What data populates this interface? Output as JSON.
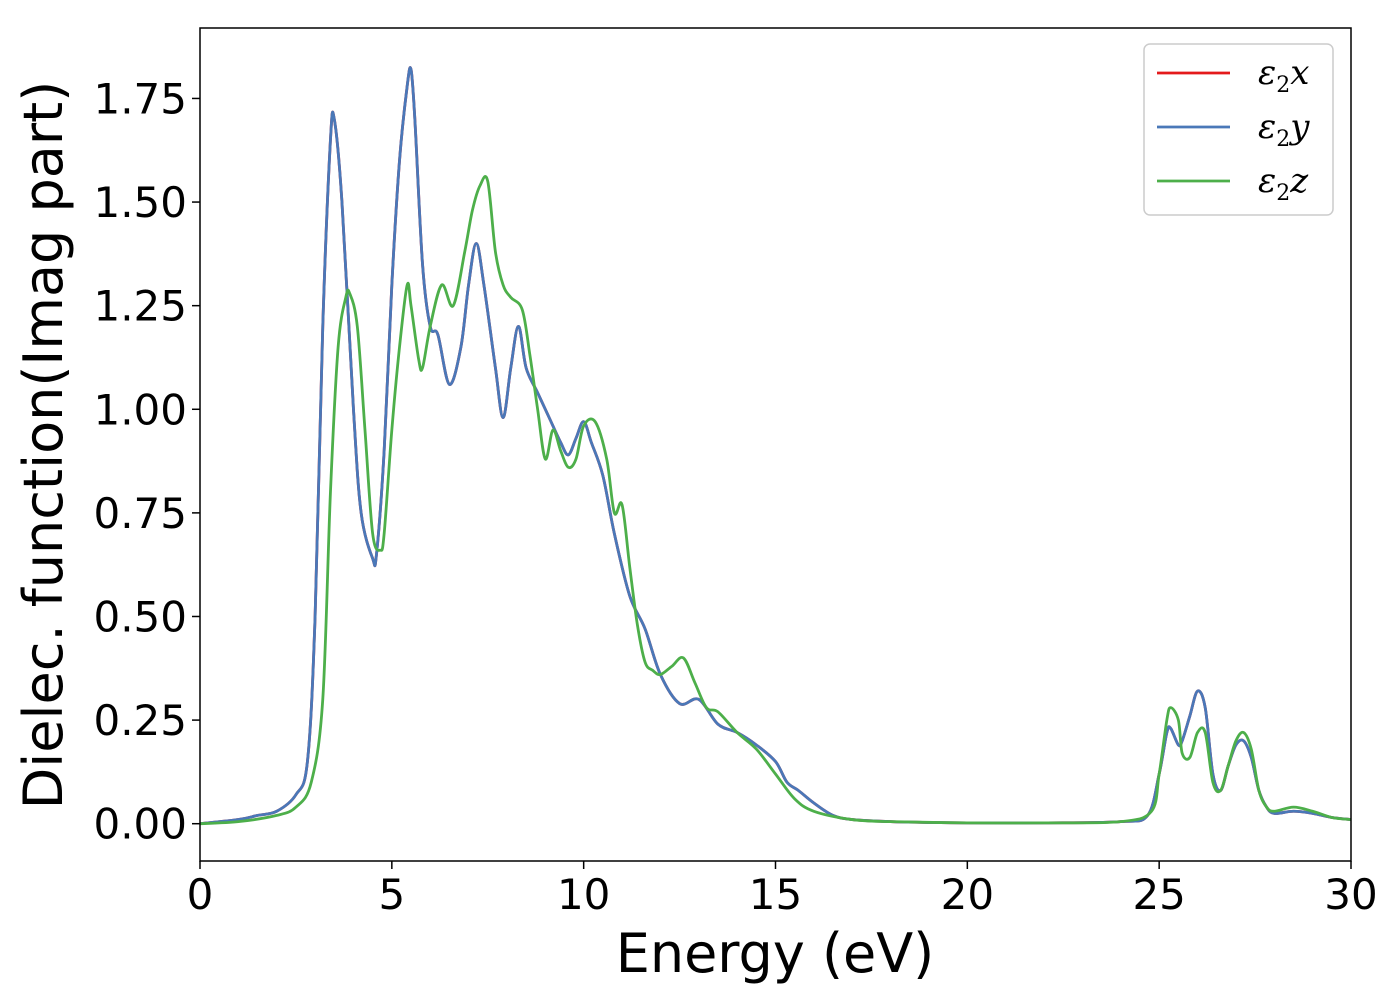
{
  "chart_data": {
    "type": "line",
    "title": "",
    "xlabel": "Energy (eV)",
    "ylabel": "Dielec. function(Imag part)",
    "xlim": [
      0,
      30
    ],
    "ylim": [
      -0.09,
      1.92
    ],
    "xticks": [
      0,
      5,
      10,
      15,
      20,
      25,
      30
    ],
    "xtick_labels": [
      "0",
      "5",
      "10",
      "15",
      "20",
      "25",
      "30"
    ],
    "yticks": [
      0.0,
      0.25,
      0.5,
      0.75,
      1.0,
      1.25,
      1.5,
      1.75
    ],
    "ytick_labels": [
      "0.00",
      "0.25",
      "0.50",
      "0.75",
      "1.00",
      "1.25",
      "1.50",
      "1.75"
    ],
    "grid": false,
    "legend_position": "top-right",
    "series": [
      {
        "name": "ε2x",
        "label_base": "ε",
        "label_sub": "2",
        "label_var": "x",
        "color": "#e41a1c",
        "x": [
          0,
          1,
          1.5,
          2,
          2.5,
          2.8,
          3,
          3.2,
          3.4,
          3.5,
          3.7,
          4,
          4.2,
          4.5,
          4.6,
          4.8,
          5,
          5.2,
          5.4,
          5.5,
          5.6,
          5.8,
          6,
          6.2,
          6.5,
          6.8,
          7,
          7.2,
          7.4,
          7.7,
          7.9,
          8.1,
          8.3,
          8.5,
          8.8,
          9.1,
          9.4,
          9.6,
          9.8,
          10,
          10.2,
          10.5,
          10.8,
          11.2,
          11.6,
          12,
          12.5,
          13,
          13.5,
          14,
          14.5,
          15,
          15.3,
          15.6,
          16,
          16.5,
          17,
          18,
          19,
          20,
          22,
          24,
          24.7,
          25,
          25.2,
          25.3,
          25.5,
          25.6,
          25.8,
          26,
          26.2,
          26.4,
          26.6,
          26.8,
          27,
          27.2,
          27.4,
          27.6,
          27.8,
          28,
          28.5,
          29,
          29.5,
          30
        ],
        "y": [
          0,
          0.01,
          0.02,
          0.03,
          0.07,
          0.15,
          0.5,
          1.2,
          1.65,
          1.7,
          1.5,
          1.0,
          0.75,
          0.64,
          0.65,
          0.9,
          1.3,
          1.6,
          1.78,
          1.82,
          1.7,
          1.35,
          1.2,
          1.18,
          1.06,
          1.15,
          1.3,
          1.4,
          1.3,
          1.1,
          0.98,
          1.1,
          1.2,
          1.1,
          1.04,
          0.98,
          0.92,
          0.89,
          0.93,
          0.97,
          0.92,
          0.84,
          0.7,
          0.55,
          0.47,
          0.36,
          0.29,
          0.3,
          0.24,
          0.22,
          0.19,
          0.15,
          0.1,
          0.08,
          0.05,
          0.02,
          0.01,
          0.005,
          0.003,
          0.002,
          0.002,
          0.005,
          0.02,
          0.12,
          0.22,
          0.23,
          0.19,
          0.2,
          0.26,
          0.32,
          0.28,
          0.12,
          0.08,
          0.14,
          0.19,
          0.2,
          0.16,
          0.08,
          0.04,
          0.025,
          0.03,
          0.025,
          0.015,
          0.01
        ]
      },
      {
        "name": "ε2y",
        "label_base": "ε",
        "label_sub": "2",
        "label_var": "y",
        "color": "#4a78b8",
        "x": [
          0,
          1,
          1.5,
          2,
          2.5,
          2.8,
          3,
          3.2,
          3.4,
          3.5,
          3.7,
          4,
          4.2,
          4.5,
          4.6,
          4.8,
          5,
          5.2,
          5.4,
          5.5,
          5.6,
          5.8,
          6,
          6.2,
          6.5,
          6.8,
          7,
          7.2,
          7.4,
          7.7,
          7.9,
          8.1,
          8.3,
          8.5,
          8.8,
          9.1,
          9.4,
          9.6,
          9.8,
          10,
          10.2,
          10.5,
          10.8,
          11.2,
          11.6,
          12,
          12.5,
          13,
          13.5,
          14,
          14.5,
          15,
          15.3,
          15.6,
          16,
          16.5,
          17,
          18,
          19,
          20,
          22,
          24,
          24.7,
          25,
          25.2,
          25.3,
          25.5,
          25.6,
          25.8,
          26,
          26.2,
          26.4,
          26.6,
          26.8,
          27,
          27.2,
          27.4,
          27.6,
          27.8,
          28,
          28.5,
          29,
          29.5,
          30
        ],
        "y": [
          0,
          0.01,
          0.02,
          0.03,
          0.07,
          0.15,
          0.5,
          1.2,
          1.65,
          1.7,
          1.5,
          1.0,
          0.75,
          0.64,
          0.65,
          0.9,
          1.3,
          1.6,
          1.78,
          1.82,
          1.7,
          1.35,
          1.2,
          1.18,
          1.06,
          1.15,
          1.3,
          1.4,
          1.3,
          1.1,
          0.98,
          1.1,
          1.2,
          1.1,
          1.04,
          0.98,
          0.92,
          0.89,
          0.93,
          0.97,
          0.92,
          0.84,
          0.7,
          0.55,
          0.47,
          0.36,
          0.29,
          0.3,
          0.24,
          0.22,
          0.19,
          0.15,
          0.1,
          0.08,
          0.05,
          0.02,
          0.01,
          0.005,
          0.003,
          0.002,
          0.002,
          0.005,
          0.02,
          0.12,
          0.22,
          0.23,
          0.19,
          0.2,
          0.26,
          0.32,
          0.28,
          0.12,
          0.08,
          0.14,
          0.19,
          0.2,
          0.16,
          0.08,
          0.04,
          0.025,
          0.03,
          0.025,
          0.015,
          0.01
        ]
      },
      {
        "name": "ε2z",
        "label_base": "ε",
        "label_sub": "2",
        "label_var": "z",
        "color": "#4daf4a",
        "x": [
          0,
          1,
          2,
          2.5,
          2.9,
          3.2,
          3.4,
          3.6,
          3.8,
          3.9,
          4.1,
          4.3,
          4.5,
          4.7,
          4.8,
          5,
          5.2,
          5.4,
          5.5,
          5.7,
          5.8,
          6,
          6.3,
          6.6,
          6.9,
          7.1,
          7.3,
          7.5,
          7.7,
          7.9,
          8.1,
          8.4,
          8.6,
          8.8,
          9,
          9.2,
          9.4,
          9.6,
          9.8,
          10,
          10.3,
          10.6,
          10.8,
          11,
          11.2,
          11.4,
          11.6,
          11.8,
          12,
          12.3,
          12.6,
          12.9,
          13.2,
          13.5,
          14,
          14.5,
          15,
          15.5,
          16,
          17,
          18,
          20,
          22,
          24,
          24.8,
          25,
          25.2,
          25.3,
          25.5,
          25.6,
          25.8,
          26,
          26.2,
          26.4,
          26.6,
          26.8,
          27,
          27.2,
          27.4,
          27.6,
          27.8,
          28,
          28.5,
          29,
          29.5,
          30
        ],
        "y": [
          0,
          0.005,
          0.02,
          0.04,
          0.1,
          0.3,
          0.8,
          1.15,
          1.27,
          1.28,
          1.2,
          0.95,
          0.7,
          0.66,
          0.7,
          0.95,
          1.15,
          1.3,
          1.25,
          1.12,
          1.1,
          1.2,
          1.3,
          1.25,
          1.38,
          1.48,
          1.54,
          1.55,
          1.38,
          1.3,
          1.27,
          1.24,
          1.13,
          1.0,
          0.88,
          0.95,
          0.9,
          0.86,
          0.88,
          0.96,
          0.97,
          0.88,
          0.75,
          0.77,
          0.62,
          0.48,
          0.39,
          0.37,
          0.36,
          0.38,
          0.4,
          0.34,
          0.28,
          0.27,
          0.22,
          0.18,
          0.12,
          0.06,
          0.03,
          0.01,
          0.005,
          0.002,
          0.002,
          0.005,
          0.03,
          0.12,
          0.25,
          0.28,
          0.25,
          0.17,
          0.16,
          0.22,
          0.22,
          0.1,
          0.08,
          0.14,
          0.2,
          0.22,
          0.18,
          0.08,
          0.04,
          0.03,
          0.04,
          0.03,
          0.015,
          0.01
        ]
      }
    ]
  }
}
